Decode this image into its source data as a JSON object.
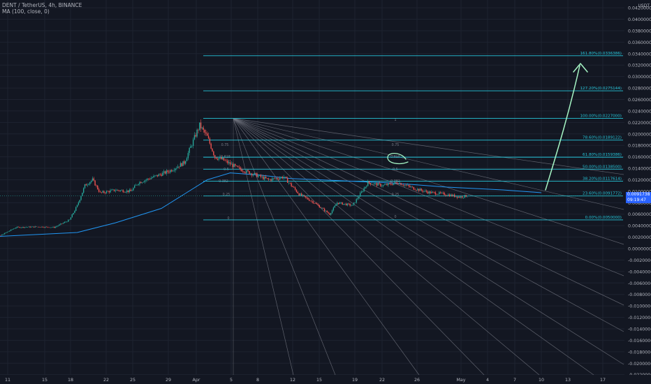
{
  "header": {
    "symbol_line": "DENT / TetherUS, 4h, BINANCE",
    "indicator_line": "MA (100, close, 0)"
  },
  "price_axis": {
    "currency": "USDT",
    "last_price": "0.0091738",
    "countdown": "09:19:47",
    "ticks": [
      "0.0420000",
      "0.0400000",
      "0.0380000",
      "0.0360000",
      "0.0340000",
      "0.0320000",
      "0.0300000",
      "0.0280000",
      "0.0260000",
      "0.0240000",
      "0.0220000",
      "0.0200000",
      "0.0180000",
      "0.0160000",
      "0.0140000",
      "0.0120000",
      "0.0100000",
      "0.0080000",
      "0.0060000",
      "0.0040000",
      "0.0020000",
      "0.0000000",
      "-0.0020000",
      "-0.0040000",
      "-0.0060000",
      "-0.0080000",
      "-0.0100000",
      "-0.0120000",
      "-0.0140000",
      "-0.0160000",
      "-0.0180000",
      "-0.0200000",
      "-0.0220000"
    ]
  },
  "time_axis": {
    "ticks": [
      "11",
      "15",
      "18",
      "22",
      "25",
      "29",
      "Apr",
      "5",
      "8",
      "12",
      "15",
      "19",
      "22",
      "26",
      "May",
      "4",
      "7",
      "10",
      "13",
      "17"
    ]
  },
  "fib_levels": [
    {
      "label": "161.80%(0.0336386)",
      "value": 0.0336386
    },
    {
      "label": "127.20%(0.0275144)",
      "value": 0.0275144
    },
    {
      "label": "100.00%(0.0227000)",
      "value": 0.0227
    },
    {
      "label": "78.60%(0.0189122)",
      "value": 0.0189122
    },
    {
      "label": "61.80%(0.0159386)",
      "value": 0.0159386
    },
    {
      "label": "50.00%(0.0138500)",
      "value": 0.01385
    },
    {
      "label": "38.20%(0.0117614)",
      "value": 0.0117614
    },
    {
      "label": "23.60%(0.0091772)",
      "value": 0.0091772
    },
    {
      "label": "0.00%(0.0050000)",
      "value": 0.005
    }
  ],
  "fan_labels": [
    "1",
    "0.75",
    "0.618",
    "0.5",
    "0.382",
    "0.25",
    "0"
  ],
  "colors": {
    "background": "#131722",
    "grid": "#1e2330",
    "axis_text": "#b2b5be",
    "up_candle": "#26a69a",
    "down_candle": "#ef5350",
    "ma_line": "#2196f3",
    "fib_line": "#26c6da",
    "fan_line": "#787b86",
    "annotation": "#a5f5c4",
    "price_tag": "#2962ff"
  },
  "chart_data": {
    "type": "candlestick",
    "timeframe": "4h",
    "ma_period": 100,
    "ylim": [
      -0.022,
      0.043
    ],
    "price_path": [
      {
        "x": "Mar 8",
        "y": 0.0021
      },
      {
        "x": "Mar 10",
        "y": 0.0023
      },
      {
        "x": "Mar 12",
        "y": 0.0037
      },
      {
        "x": "Mar 15",
        "y": 0.0038
      },
      {
        "x": "Mar 17",
        "y": 0.0037
      },
      {
        "x": "Mar 19",
        "y": 0.005
      },
      {
        "x": "Mar 20",
        "y": 0.0075
      },
      {
        "x": "Mar 21",
        "y": 0.011
      },
      {
        "x": "Mar 22",
        "y": 0.012
      },
      {
        "x": "Mar 23",
        "y": 0.0097
      },
      {
        "x": "Mar 25",
        "y": 0.0102
      },
      {
        "x": "Mar 27",
        "y": 0.01
      },
      {
        "x": "Mar 28",
        "y": 0.0115
      },
      {
        "x": "Mar 30",
        "y": 0.0125
      },
      {
        "x": "Apr 1",
        "y": 0.0135
      },
      {
        "x": "Apr 3",
        "y": 0.015
      },
      {
        "x": "Apr 5",
        "y": 0.0215
      },
      {
        "x": "Apr 6",
        "y": 0.0195
      },
      {
        "x": "Apr 7",
        "y": 0.016
      },
      {
        "x": "Apr 8",
        "y": 0.0155
      },
      {
        "x": "Apr 10",
        "y": 0.014
      },
      {
        "x": "Apr 12",
        "y": 0.013
      },
      {
        "x": "Apr 14",
        "y": 0.012
      },
      {
        "x": "Apr 16",
        "y": 0.0125
      },
      {
        "x": "Apr 18",
        "y": 0.0095
      },
      {
        "x": "Apr 20",
        "y": 0.008
      },
      {
        "x": "Apr 22",
        "y": 0.006
      },
      {
        "x": "Apr 23",
        "y": 0.008
      },
      {
        "x": "Apr 25",
        "y": 0.0075
      },
      {
        "x": "Apr 27",
        "y": 0.0115
      },
      {
        "x": "Apr 29",
        "y": 0.011
      },
      {
        "x": "May 1",
        "y": 0.0115
      },
      {
        "x": "May 3",
        "y": 0.0105
      },
      {
        "x": "May 5",
        "y": 0.0098
      },
      {
        "x": "May 7",
        "y": 0.0095
      },
      {
        "x": "May 9",
        "y": 0.009
      },
      {
        "x": "May 10",
        "y": 0.0092
      }
    ],
    "ma_path": [
      {
        "x": "Mar 8",
        "y": 0.002
      },
      {
        "x": "Mar 20",
        "y": 0.0028
      },
      {
        "x": "Mar 25",
        "y": 0.0045
      },
      {
        "x": "Mar 31",
        "y": 0.007
      },
      {
        "x": "Apr 3",
        "y": 0.0095
      },
      {
        "x": "Apr 6",
        "y": 0.012
      },
      {
        "x": "Apr 9",
        "y": 0.0132
      },
      {
        "x": "Apr 13",
        "y": 0.0128
      },
      {
        "x": "Apr 17",
        "y": 0.0122
      }
    ],
    "projection_target": 0.034
  }
}
